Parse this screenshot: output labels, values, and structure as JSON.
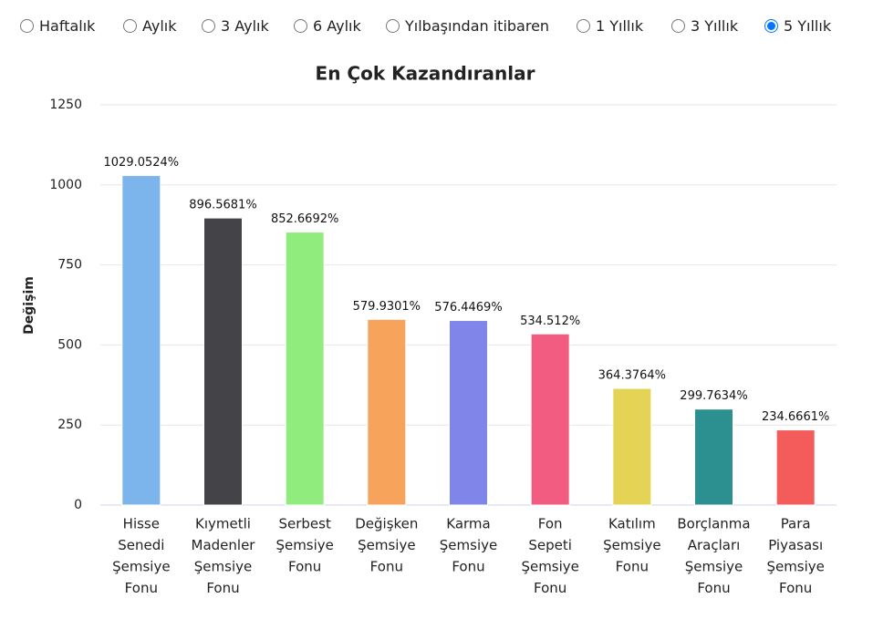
{
  "period_options": [
    {
      "label": "Haftalık",
      "checked": false
    },
    {
      "label": "Aylık",
      "checked": false
    },
    {
      "label": "3 Aylık",
      "checked": false
    },
    {
      "label": "6 Aylık",
      "checked": false
    },
    {
      "label": "Yılbaşından itibaren",
      "checked": false
    },
    {
      "label": "1 Yıllık",
      "checked": false
    },
    {
      "label": "3 Yıllık",
      "checked": false
    },
    {
      "label": "5 Yıllık",
      "checked": true
    }
  ],
  "chart_data": {
    "type": "bar",
    "title": "En Çok Kazandıranlar",
    "y_label": "Değişim",
    "categories": [
      [
        "Hisse",
        "Senedi",
        "Şemsiye",
        "Fonu"
      ],
      [
        "Kıymetli",
        "Madenler",
        "Şemsiye",
        "Fonu"
      ],
      [
        "Serbest",
        "Şemsiye",
        "Fonu"
      ],
      [
        "Değişken",
        "Şemsiye",
        "Fonu"
      ],
      [
        "Karma",
        "Şemsiye",
        "Fonu"
      ],
      [
        "Fon",
        "Sepeti",
        "Şemsiye",
        "Fonu"
      ],
      [
        "Katılım",
        "Şemsiye",
        "Fonu"
      ],
      [
        "Borçlanma",
        "Araçları",
        "Şemsiye",
        "Fonu"
      ],
      [
        "Para",
        "Piyasası",
        "Şemsiye",
        "Fonu"
      ]
    ],
    "values": [
      1029.0524,
      896.5681,
      852.6692,
      579.9301,
      576.4469,
      534.512,
      364.3764,
      299.7634,
      234.6661
    ],
    "value_labels": [
      "1029.0524%",
      "896.5681%",
      "852.6692%",
      "579.9301%",
      "576.4469%",
      "534.512%",
      "364.3764%",
      "299.7634%",
      "234.6661%"
    ],
    "colors": [
      "#7cb5ec",
      "#434348",
      "#90ed7d",
      "#f7a35c",
      "#8085e9",
      "#f15c80",
      "#e4d354",
      "#2b908f",
      "#f45b5b"
    ],
    "ylim": [
      0,
      1250
    ],
    "yticks": [
      0,
      250,
      500,
      750,
      1000,
      1250
    ],
    "grid": true
  }
}
